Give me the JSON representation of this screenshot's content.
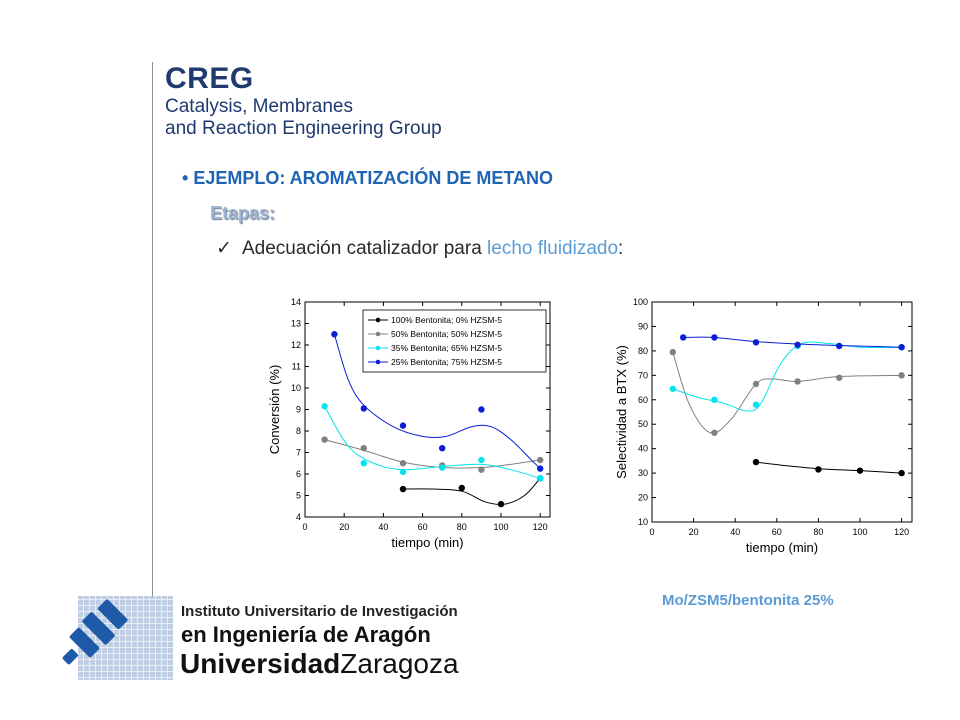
{
  "header": {
    "logo_title": "CREG",
    "logo_line1": "Catalysis, Membranes",
    "logo_line2": "and Reaction Engineering Group"
  },
  "content": {
    "bullet_marker": "•",
    "bullet_title": "EJEMPLO: AROMATIZACIÓN DE METANO",
    "etapas": "Etapas:",
    "check_mark": "✓",
    "check_text_part1": "Adecuación catalizador para ",
    "check_text_highlight": "lecho fluidizado",
    "check_text_part2": ":",
    "catalyst_label": "Mo/ZSM5/bentonita  25%"
  },
  "footer": {
    "institute_line1": "Instituto Universitario de Investigación",
    "institute_line2": "en Ingeniería de Aragón",
    "university_bold": "Universidad",
    "university_city": "Zaragoza",
    "logo_mark": "i3a"
  },
  "chart_data": [
    {
      "type": "scatter",
      "xlabel": "tiempo (min)",
      "ylabel": "Conversión (%)",
      "xlim": [
        0,
        125
      ],
      "ylim": [
        4,
        14
      ],
      "xticks": [
        0,
        20,
        40,
        60,
        80,
        100,
        120
      ],
      "yticks": [
        4,
        5,
        6,
        7,
        8,
        9,
        10,
        11,
        12,
        13,
        14
      ],
      "grid": false,
      "legend": "top-right",
      "series": [
        {
          "name": "100% Bentonita; 0% HZSM-5",
          "color": "#000000",
          "points": [
            [
              50,
              5.3
            ],
            [
              80,
              5.35
            ],
            [
              100,
              4.6
            ],
            [
              120,
              5.8
            ]
          ],
          "curve": [
            [
              50,
              5.3
            ],
            [
              65,
              5.3
            ],
            [
              80,
              5.2
            ],
            [
              92,
              4.7
            ],
            [
              102,
              4.6
            ],
            [
              112,
              5.0
            ],
            [
              120,
              5.8
            ]
          ]
        },
        {
          "name": "50% Bentonita; 50% HZSM-5",
          "color": "#808080",
          "points": [
            [
              10,
              7.6
            ],
            [
              30,
              7.2
            ],
            [
              50,
              6.5
            ],
            [
              70,
              6.4
            ],
            [
              90,
              6.2
            ],
            [
              120,
              6.65
            ]
          ],
          "curve": [
            [
              10,
              7.6
            ],
            [
              30,
              7.1
            ],
            [
              50,
              6.55
            ],
            [
              70,
              6.3
            ],
            [
              90,
              6.3
            ],
            [
              105,
              6.45
            ],
            [
              120,
              6.65
            ]
          ]
        },
        {
          "name": "35% Bentonita; 65% HZSM-5",
          "color": "#00e5ee",
          "points": [
            [
              10,
              9.15
            ],
            [
              30,
              6.5
            ],
            [
              50,
              6.1
            ],
            [
              70,
              6.3
            ],
            [
              90,
              6.65
            ],
            [
              120,
              5.8
            ]
          ],
          "curve": [
            [
              10,
              9.15
            ],
            [
              22,
              7.3
            ],
            [
              35,
              6.5
            ],
            [
              50,
              6.2
            ],
            [
              70,
              6.35
            ],
            [
              90,
              6.45
            ],
            [
              105,
              6.2
            ],
            [
              120,
              5.8
            ]
          ]
        },
        {
          "name": "25% Bentonita; 75% HZSM-5",
          "color": "#0a1fd6",
          "points": [
            [
              15,
              12.5
            ],
            [
              30,
              9.05
            ],
            [
              50,
              8.25
            ],
            [
              70,
              7.2
            ],
            [
              90,
              9.0
            ],
            [
              120,
              6.25
            ]
          ],
          "curve": [
            [
              15,
              12.5
            ],
            [
              22,
              10.4
            ],
            [
              30,
              9.2
            ],
            [
              45,
              8.2
            ],
            [
              60,
              7.75
            ],
            [
              72,
              7.75
            ],
            [
              85,
              8.2
            ],
            [
              95,
              8.2
            ],
            [
              105,
              7.6
            ],
            [
              115,
              6.7
            ],
            [
              120,
              6.25
            ]
          ]
        }
      ]
    },
    {
      "type": "scatter",
      "xlabel": "tiempo (min)",
      "ylabel": "Selectividad a BTX (%)",
      "xlim": [
        0,
        125
      ],
      "ylim": [
        10,
        100
      ],
      "xticks": [
        0,
        20,
        40,
        60,
        80,
        100,
        120
      ],
      "yticks": [
        10,
        20,
        30,
        40,
        50,
        60,
        70,
        80,
        90,
        100
      ],
      "grid": false,
      "series": [
        {
          "color": "#000000",
          "points": [
            [
              50,
              34.5
            ],
            [
              80,
              31.5
            ],
            [
              100,
              31
            ],
            [
              120,
              30
            ]
          ],
          "curve": [
            [
              50,
              34.5
            ],
            [
              65,
              33
            ],
            [
              80,
              31.8
            ],
            [
              100,
              31
            ],
            [
              120,
              30
            ]
          ]
        },
        {
          "color": "#808080",
          "points": [
            [
              10,
              79.5
            ],
            [
              30,
              46.5
            ],
            [
              50,
              66.5
            ],
            [
              70,
              67.5
            ],
            [
              90,
              69
            ],
            [
              120,
              70
            ]
          ],
          "curve": [
            [
              10,
              79.5
            ],
            [
              18,
              58
            ],
            [
              28,
              46.5
            ],
            [
              38,
              52
            ],
            [
              50,
              66.5
            ],
            [
              58,
              68.5
            ],
            [
              70,
              67.5
            ],
            [
              90,
              69.5
            ],
            [
              120,
              70
            ]
          ]
        },
        {
          "color": "#00e5ee",
          "points": [
            [
              10,
              64.5
            ],
            [
              30,
              60
            ],
            [
              50,
              58
            ],
            [
              70,
              82
            ],
            [
              90,
              82
            ],
            [
              120,
              81.5
            ]
          ],
          "curve": [
            [
              10,
              64.5
            ],
            [
              22,
              61
            ],
            [
              35,
              58.5
            ],
            [
              45,
              55.5
            ],
            [
              52,
              58
            ],
            [
              62,
              75
            ],
            [
              72,
              83
            ],
            [
              85,
              83
            ],
            [
              100,
              81.5
            ],
            [
              120,
              81.5
            ]
          ]
        },
        {
          "color": "#0a1fd6",
          "points": [
            [
              15,
              85.5
            ],
            [
              30,
              85.5
            ],
            [
              50,
              83.5
            ],
            [
              70,
              82.5
            ],
            [
              90,
              82
            ],
            [
              120,
              81.5
            ]
          ],
          "curve": [
            [
              15,
              85.5
            ],
            [
              30,
              85.5
            ],
            [
              50,
              83.8
            ],
            [
              70,
              82.8
            ],
            [
              90,
              82.2
            ],
            [
              120,
              81.5
            ]
          ]
        }
      ]
    }
  ]
}
